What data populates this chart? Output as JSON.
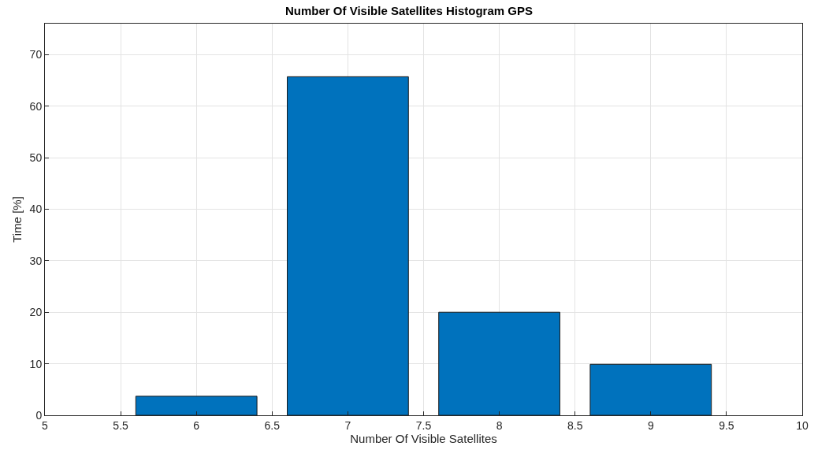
{
  "chart_data": {
    "type": "bar",
    "title": "Number Of Visible Satellites Histogram GPS",
    "xlabel": "Number Of Visible Satellites",
    "ylabel": "Time [%]",
    "x": [
      6,
      7,
      8,
      9
    ],
    "values": [
      3.7,
      65.7,
      20.0,
      9.9
    ],
    "color": "#0072bd",
    "xlim": [
      5,
      10
    ],
    "xticks": [
      5,
      5.5,
      6,
      6.5,
      7,
      7.5,
      8,
      8.5,
      9,
      9.5,
      10
    ],
    "ylim": [
      0,
      76
    ],
    "yticks": [
      0,
      10,
      20,
      30,
      40,
      50,
      60,
      70
    ],
    "grid": true
  }
}
